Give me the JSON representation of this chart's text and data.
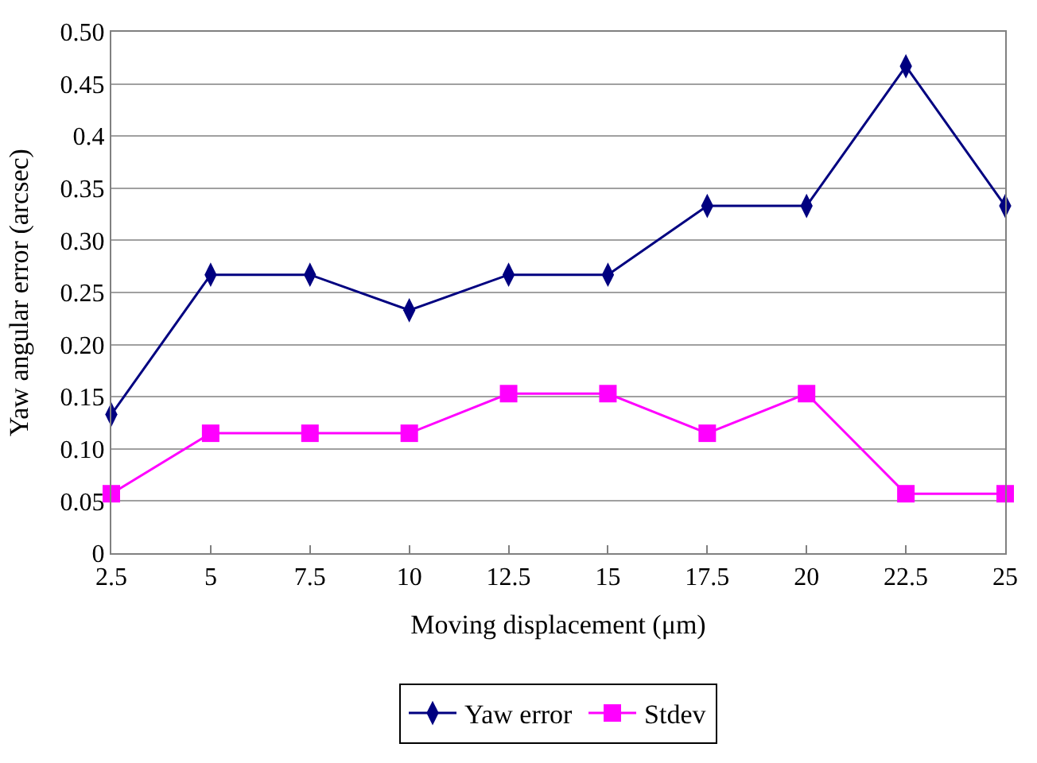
{
  "chart_data": {
    "type": "line",
    "xlabel": "Moving displacement (μm)",
    "ylabel": "Yaw angular error (arcsec)",
    "x": [
      2.5,
      5,
      7.5,
      10,
      12.5,
      15,
      17.5,
      20,
      22.5,
      25
    ],
    "xlim": [
      2.5,
      25
    ],
    "xticks": [
      2.5,
      5,
      7.5,
      10,
      12.5,
      15,
      17.5,
      20,
      22.5,
      25
    ],
    "ylim": [
      0,
      0.5
    ],
    "yticks": [
      0,
      0.05,
      {
        "value": 0.1,
        "label": "0.10"
      },
      0.15,
      {
        "value": 0.2,
        "label": "0.20"
      },
      0.25,
      {
        "value": 0.3,
        "label": "0.30"
      },
      0.35,
      0.4,
      0.45,
      {
        "value": 0.5,
        "label": "0.50"
      }
    ],
    "grid": "y",
    "legend": "bottom",
    "series": [
      {
        "name": "Yaw error",
        "color": "#000080",
        "marker": "diamond",
        "values": [
          0.133,
          0.267,
          0.267,
          0.233,
          0.267,
          0.267,
          0.333,
          0.333,
          0.467,
          0.333
        ]
      },
      {
        "name": "Stdev",
        "color": "#ff00ff",
        "marker": "square",
        "values": [
          0.057,
          0.115,
          0.115,
          0.115,
          0.153,
          0.153,
          0.115,
          0.153,
          0.057,
          0.057
        ]
      }
    ]
  }
}
